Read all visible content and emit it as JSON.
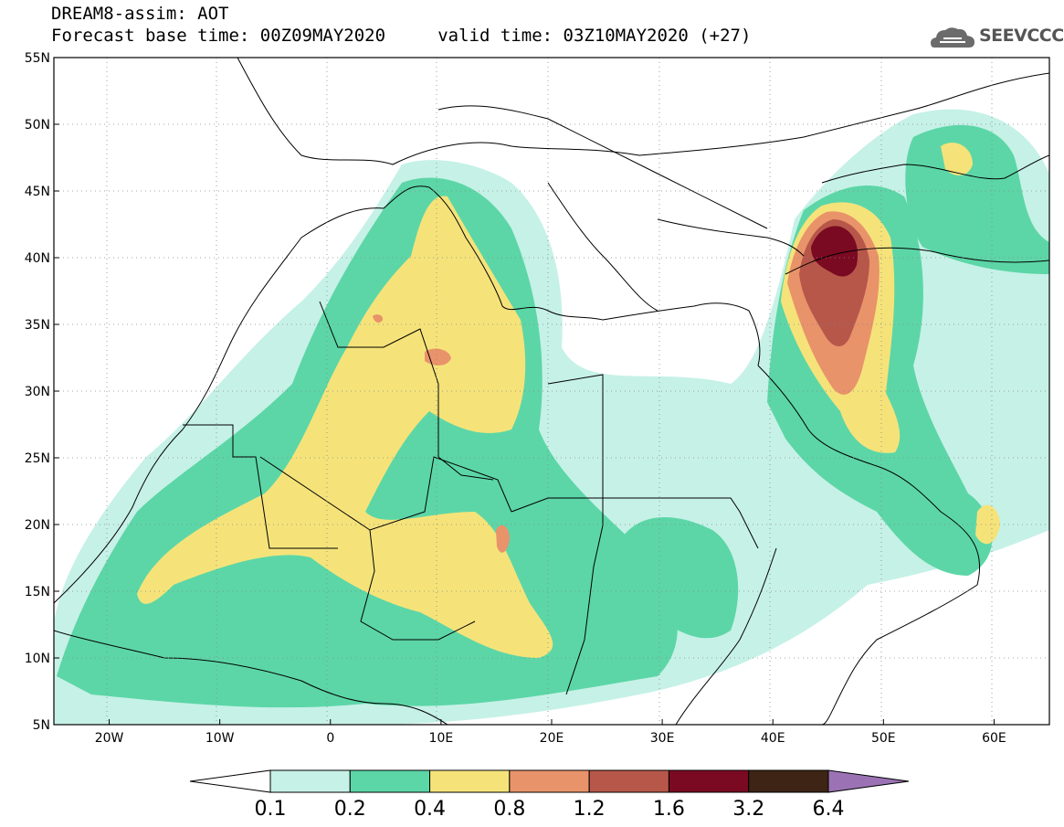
{
  "header": {
    "title_line1": "DREAM8-assim: AOT",
    "title_line2": "Forecast base time: 00Z09MAY2020     valid time: 03Z10MAY2020 (+27)"
  },
  "logo": {
    "text": "SEEVCCC",
    "icon": "cloud-icon"
  },
  "map": {
    "lon_range": [
      -25,
      65
    ],
    "lat_range": [
      5,
      55
    ],
    "lat_ticks": [
      "5N",
      "10N",
      "15N",
      "20N",
      "25N",
      "30N",
      "35N",
      "40N",
      "45N",
      "50N",
      "55N"
    ],
    "lon_ticks": [
      "20W",
      "10W",
      "0",
      "10E",
      "20E",
      "30E",
      "40E",
      "50E",
      "60E"
    ],
    "grid": "dotted"
  },
  "colorbar": {
    "labels": [
      "0.1",
      "0.2",
      "0.4",
      "0.8",
      "1.2",
      "1.6",
      "3.2",
      "6.4"
    ],
    "colors": [
      "#ffffff",
      "#c6f1e7",
      "#5cd6a7",
      "#f5e37a",
      "#e9936a",
      "#b6574a",
      "#7a0a22",
      "#3d2414",
      "#9b73b5"
    ]
  }
}
